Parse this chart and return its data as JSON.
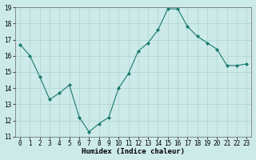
{
  "xlabel": "Humidex (Indice chaleur)",
  "ylabel": "",
  "x": [
    0,
    1,
    2,
    3,
    4,
    5,
    6,
    7,
    8,
    9,
    10,
    11,
    12,
    13,
    14,
    15,
    16,
    17,
    18,
    19,
    20,
    21,
    22,
    23
  ],
  "y": [
    16.7,
    16.0,
    14.7,
    13.3,
    13.7,
    14.2,
    12.2,
    11.3,
    11.8,
    12.2,
    14.0,
    14.9,
    16.3,
    16.8,
    17.6,
    18.9,
    18.9,
    17.8,
    17.2,
    16.8,
    16.4,
    15.4,
    15.4,
    15.5
  ],
  "ylim": [
    11,
    19
  ],
  "xlim": [
    -0.5,
    23.5
  ],
  "yticks": [
    11,
    12,
    13,
    14,
    15,
    16,
    17,
    18,
    19
  ],
  "xticks": [
    0,
    1,
    2,
    3,
    4,
    5,
    6,
    7,
    8,
    9,
    10,
    11,
    12,
    13,
    14,
    15,
    16,
    17,
    18,
    19,
    20,
    21,
    22,
    23
  ],
  "line_color": "#1a7a6e",
  "marker": "D",
  "marker_size": 2,
  "bg_color": "#cceae8",
  "grid_color": "#aad4d0",
  "xlabel_fontsize": 6.5,
  "tick_fontsize": 5.5
}
